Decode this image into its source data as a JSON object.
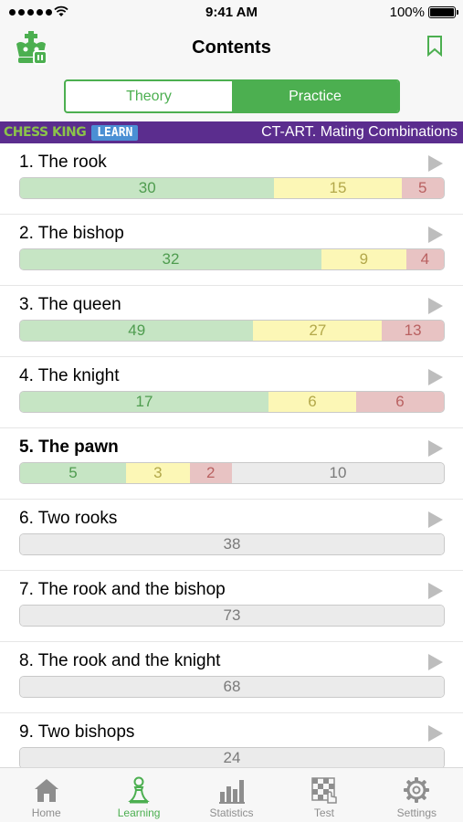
{
  "status": {
    "time": "9:41 AM",
    "battery": "100%"
  },
  "nav": {
    "title": "Contents"
  },
  "segments": [
    {
      "label": "Theory",
      "active": false
    },
    {
      "label": "Practice",
      "active": true
    }
  ],
  "banner": {
    "brand": "CHESS KING",
    "badge": "LEARN",
    "course": "CT-ART. Mating Combinations"
  },
  "chapters": [
    {
      "label": "1. The rook",
      "bold": false,
      "green": 30,
      "yellow": 15,
      "red": 5,
      "rest": 0
    },
    {
      "label": "2. The bishop",
      "bold": false,
      "green": 32,
      "yellow": 9,
      "red": 4,
      "rest": 0
    },
    {
      "label": "3. The queen",
      "bold": false,
      "green": 49,
      "yellow": 27,
      "red": 13,
      "rest": 0
    },
    {
      "label": "4. The knight",
      "bold": false,
      "green": 17,
      "yellow": 6,
      "red": 6,
      "rest": 0
    },
    {
      "label": "5. The pawn",
      "bold": true,
      "green": 5,
      "yellow": 3,
      "red": 2,
      "rest": 10
    },
    {
      "label": "6. Two rooks",
      "bold": false,
      "green": 0,
      "yellow": 0,
      "red": 0,
      "rest": 38
    },
    {
      "label": "7. The rook and the bishop",
      "bold": false,
      "green": 0,
      "yellow": 0,
      "red": 0,
      "rest": 73
    },
    {
      "label": "8. The rook and the knight",
      "bold": false,
      "green": 0,
      "yellow": 0,
      "red": 0,
      "rest": 68
    },
    {
      "label": "9. Two bishops",
      "bold": false,
      "green": 0,
      "yellow": 0,
      "red": 0,
      "rest": 24
    }
  ],
  "tabs": [
    {
      "label": "Home",
      "icon": "home-icon",
      "active": false
    },
    {
      "label": "Learning",
      "icon": "pawn-icon",
      "active": true
    },
    {
      "label": "Statistics",
      "icon": "bar-chart-icon",
      "active": false
    },
    {
      "label": "Test",
      "icon": "chessboard-icon",
      "active": false
    },
    {
      "label": "Settings",
      "icon": "gear-icon",
      "active": false
    }
  ],
  "colors": {
    "accent": "#4caf50",
    "banner": "#5b2d8e",
    "green_seg": "#c6e5c4",
    "yellow_seg": "#fcf7b6",
    "red_seg": "#e8c3c3",
    "grey_seg": "#ebebeb"
  }
}
